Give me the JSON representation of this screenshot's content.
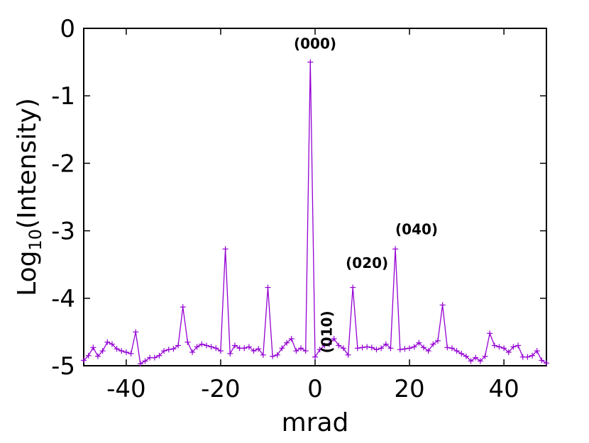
{
  "chart_data": {
    "type": "line",
    "xlabel": "mrad",
    "ylabel_main": "Log",
    "ylabel_sub": "10",
    "ylabel_rest": "(Intensity)",
    "xlim": [
      -49,
      49
    ],
    "ylim": [
      -5,
      0
    ],
    "xticks": [
      -40,
      -20,
      0,
      20,
      40
    ],
    "yticks": [
      0,
      -1,
      -2,
      -3,
      -4,
      -5
    ],
    "grid": false,
    "line_color": "#9400d3",
    "series": [
      {
        "x": [
          -49,
          -48,
          -47,
          -46,
          -45,
          -44,
          -43,
          -42,
          -41,
          -40,
          -39,
          -38,
          -37,
          -36,
          -35,
          -34,
          -33,
          -32,
          -31,
          -30,
          -29,
          -28,
          -27,
          -26,
          -25,
          -24,
          -23,
          -22,
          -21,
          -20,
          -19,
          -18,
          -17,
          -16,
          -15,
          -14,
          -13,
          -12,
          -11,
          -10,
          -9,
          -8,
          -7,
          -6,
          -5,
          -4,
          -3,
          -2,
          -1,
          0,
          1,
          2,
          3,
          4,
          5,
          6,
          7,
          8,
          9,
          10,
          11,
          12,
          13,
          14,
          15,
          16,
          17,
          18,
          19,
          20,
          21,
          22,
          23,
          24,
          25,
          26,
          27,
          28,
          29,
          30,
          31,
          32,
          33,
          34,
          35,
          36,
          37,
          38,
          39,
          40,
          41,
          42,
          43,
          44,
          45,
          46,
          47,
          48,
          49
        ],
        "y": [
          -4.92,
          -4.85,
          -4.73,
          -4.86,
          -4.78,
          -4.65,
          -4.68,
          -4.75,
          -4.78,
          -4.8,
          -4.82,
          -4.5,
          -4.97,
          -4.93,
          -4.88,
          -4.88,
          -4.85,
          -4.78,
          -4.76,
          -4.75,
          -4.7,
          -4.13,
          -4.65,
          -4.8,
          -4.72,
          -4.68,
          -4.7,
          -4.72,
          -4.74,
          -4.78,
          -3.27,
          -4.82,
          -4.7,
          -4.74,
          -4.74,
          -4.72,
          -4.78,
          -4.75,
          -4.84,
          -3.84,
          -4.86,
          -4.84,
          -4.74,
          -4.66,
          -4.6,
          -4.78,
          -4.74,
          -4.78,
          -0.5,
          -4.87,
          -4.76,
          -4.7,
          -4.68,
          -4.6,
          -4.7,
          -4.74,
          -4.84,
          -3.84,
          -4.74,
          -4.73,
          -4.72,
          -4.73,
          -4.76,
          -4.74,
          -4.68,
          -4.74,
          -3.27,
          -4.76,
          -4.75,
          -4.74,
          -4.72,
          -4.66,
          -4.73,
          -4.78,
          -4.68,
          -4.63,
          -4.1,
          -4.73,
          -4.74,
          -4.78,
          -4.82,
          -4.86,
          -4.93,
          -4.88,
          -4.93,
          -4.86,
          -4.52,
          -4.7,
          -4.72,
          -4.74,
          -4.8,
          -4.72,
          -4.7,
          -4.87,
          -4.87,
          -4.85,
          -4.78,
          -4.92,
          -4.96
        ]
      }
    ],
    "annotations": [
      {
        "text": "(000)",
        "x": 0,
        "y": -0.3,
        "rotate": 0
      },
      {
        "text": "(010)",
        "x": 3.5,
        "y": -4.5,
        "rotate": -90
      },
      {
        "text": "(020)",
        "x": 11,
        "y": -3.55,
        "rotate": 0
      },
      {
        "text": "(040)",
        "x": 21.5,
        "y": -3.05,
        "rotate": 0
      }
    ]
  }
}
